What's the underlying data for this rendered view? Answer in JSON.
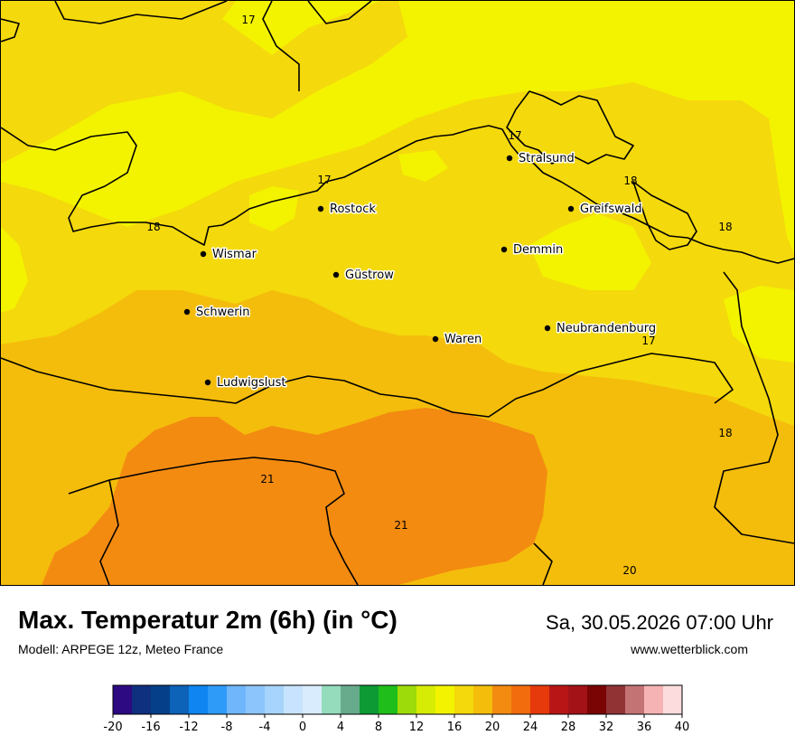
{
  "map": {
    "isotherm_labels": [
      {
        "text": "17",
        "place": "north-west-sea"
      },
      {
        "text": "17",
        "place": "stralsund"
      },
      {
        "text": "17",
        "place": "rostock-coast"
      },
      {
        "text": "18",
        "place": "wismar-bay"
      },
      {
        "text": "18",
        "place": "greifswald"
      },
      {
        "text": "18",
        "place": "east-poland-coast"
      },
      {
        "text": "17",
        "place": "neubrandenburg"
      },
      {
        "text": "18",
        "place": "east-border"
      },
      {
        "text": "21",
        "place": "south-west"
      },
      {
        "text": "21",
        "place": "south-center"
      },
      {
        "text": "20",
        "place": "south-east"
      }
    ],
    "cities": [
      {
        "name": "Stralsund",
        "id": "stralsund"
      },
      {
        "name": "Rostock",
        "id": "rostock"
      },
      {
        "name": "Greifswald",
        "id": "greifswald"
      },
      {
        "name": "Wismar",
        "id": "wismar"
      },
      {
        "name": "Demmin",
        "id": "demmin"
      },
      {
        "name": "Güstrow",
        "id": "guestrow"
      },
      {
        "name": "Schwerin",
        "id": "schwerin"
      },
      {
        "name": "Neubrandenburg",
        "id": "neubrandenburg"
      },
      {
        "name": "Waren",
        "id": "waren"
      },
      {
        "name": "Ludwigslust",
        "id": "ludwigslust"
      }
    ],
    "colors": {
      "c16": "#f3f300",
      "c18": "#f4d90c",
      "c20": "#f4bd0b",
      "c22": "#f38b11"
    }
  },
  "header": {
    "title": "Max. Temperatur 2m (6h) (in °C)",
    "subtitle": "Modell: ARPEGE 12z, Meteo France",
    "datetime": "Sa, 30.05.2026 07:00 Uhr",
    "website": "www.wetterblick.com"
  },
  "legend": {
    "ticks": [
      "-20",
      "-16",
      "-12",
      "-8",
      "-4",
      "0",
      "4",
      "8",
      "12",
      "16",
      "20",
      "24",
      "28",
      "32",
      "36",
      "40"
    ],
    "colors": [
      "#2e0a82",
      "#0f2f7f",
      "#053f8a",
      "#0c63b8",
      "#0e85f0",
      "#2f9bf8",
      "#6fb6fb",
      "#8cc5fb",
      "#a7d4fc",
      "#c7e3fd",
      "#d9ecfd",
      "#94dcbc",
      "#67ab8c",
      "#0d9a35",
      "#1fbe1a",
      "#9edb0a",
      "#d7ec04",
      "#f3f300",
      "#f4d90c",
      "#f4bd0b",
      "#f38b11",
      "#f26b0c",
      "#e63a0c",
      "#b81616",
      "#a31217",
      "#7a0404",
      "#913235",
      "#c47374",
      "#f6b3b3",
      "#fddcdd"
    ]
  }
}
